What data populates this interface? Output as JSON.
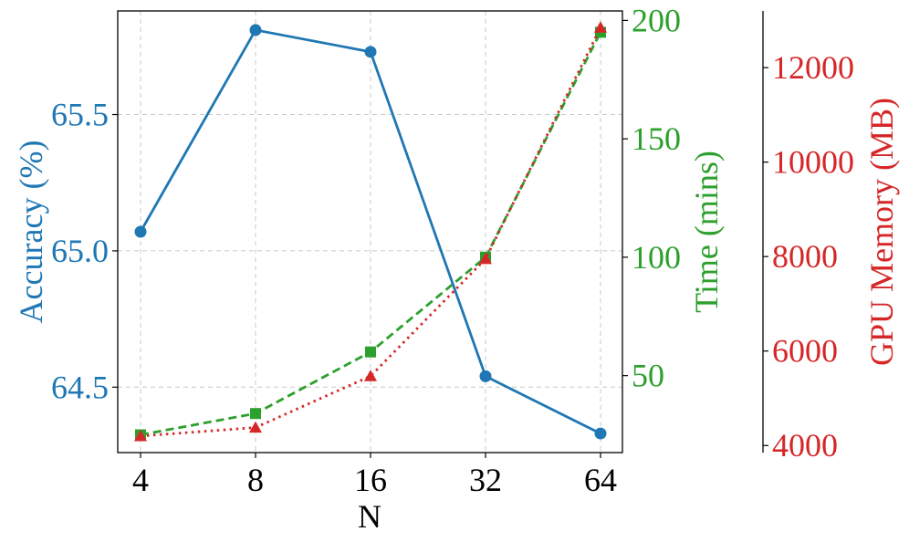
{
  "chart_data": {
    "type": "line",
    "title": "",
    "xlabel": "N",
    "x_categories": [
      "4",
      "8",
      "16",
      "32",
      "64"
    ],
    "grid": true,
    "axes": {
      "accuracy": {
        "label": "Accuracy (%)",
        "color": "#1f77b4",
        "ylim": [
          64.26,
          65.88
        ],
        "ticks": [
          64.5,
          65.0,
          65.5
        ],
        "tick_labels": [
          "64.5",
          "65.0",
          "65.5"
        ]
      },
      "time": {
        "label": "Time (mins)",
        "color": "#2ca02c",
        "ylim": [
          17.5,
          204
        ],
        "ticks": [
          50,
          100,
          150,
          200
        ],
        "tick_labels": [
          "50",
          "100",
          "150",
          "200"
        ]
      },
      "memory": {
        "label": "GPU Memory (MB)",
        "color": "#d62728",
        "ylim": [
          3850,
          13200
        ],
        "ticks": [
          4000,
          6000,
          8000,
          10000,
          12000
        ],
        "tick_labels": [
          "4000",
          "6000",
          "8000",
          "10000",
          "12000"
        ]
      }
    },
    "series": [
      {
        "axis": "accuracy",
        "color": "#1f77b4",
        "line": "solid",
        "marker": "circle",
        "values": [
          65.07,
          65.81,
          65.73,
          64.54,
          64.33
        ]
      },
      {
        "axis": "time",
        "color": "#2ca02c",
        "line": "dashed",
        "marker": "square",
        "values": [
          25,
          34,
          60,
          100,
          195
        ]
      },
      {
        "axis": "memory",
        "color": "#d62728",
        "line": "dotted",
        "marker": "triangle",
        "values": [
          4200,
          4380,
          5470,
          7950,
          12850
        ]
      }
    ]
  }
}
